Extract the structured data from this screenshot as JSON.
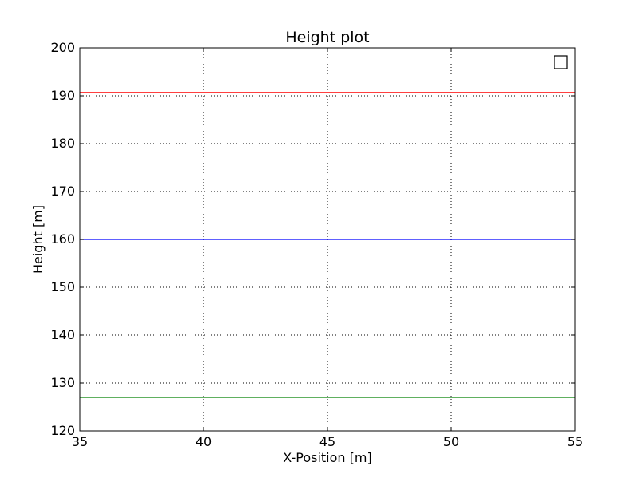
{
  "chart_data": {
    "type": "line",
    "title": "Height plot",
    "xlabel": "X-Position [m]",
    "ylabel": "Height [m]",
    "xlim": [
      35,
      55
    ],
    "ylim": [
      120,
      200
    ],
    "xticks": [
      35,
      40,
      45,
      50,
      55
    ],
    "yticks": [
      120,
      130,
      140,
      150,
      160,
      170,
      180,
      190,
      200
    ],
    "grid": true,
    "legend": {
      "placement": "top-right",
      "entries": []
    },
    "series": [
      {
        "x": [
          35,
          55
        ],
        "y": [
          190.7,
          190.7
        ],
        "color": "#ff0000"
      },
      {
        "x": [
          35,
          55
        ],
        "y": [
          160,
          160
        ],
        "color": "#0000ff"
      },
      {
        "x": [
          35,
          55
        ],
        "y": [
          127,
          127
        ],
        "color": "#008000"
      }
    ]
  }
}
